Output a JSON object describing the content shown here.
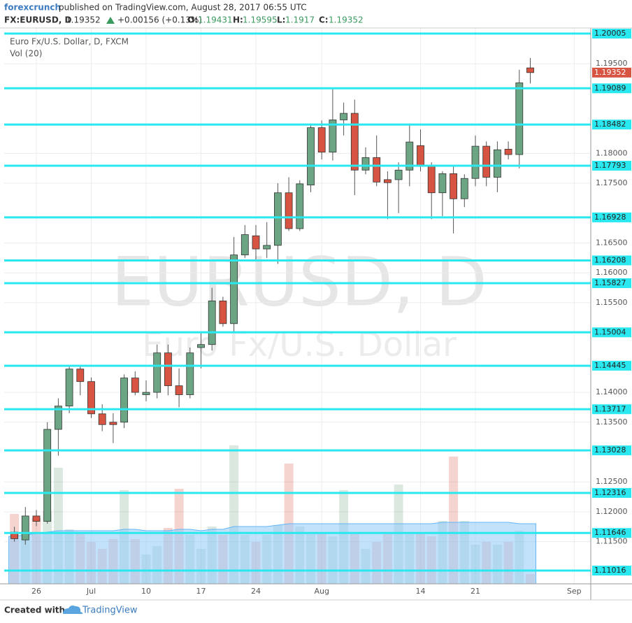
{
  "header": {
    "brand": "forexcrunch",
    "published": "published on TradingView.com, August 28, 2017 06:55 UTC",
    "symbol": "FX:EURUSD, D",
    "change": "+0.00156 (+0.13%)",
    "o_label": "O:",
    "h_label": "H:",
    "l_label": "L:",
    "c_label": "C:"
  },
  "watermark": {
    "symbol": "EURUSD, D",
    "name": "Euro Fx/U.S. Dollar"
  },
  "footer": {
    "created": "Created with",
    "brand": "TradingView"
  },
  "chart_data": {
    "type": "candlestick",
    "title": "Euro Fx/U.S. Dollar, D, FXCM",
    "volume_title": "Vol (20)",
    "categories": [
      null,
      null,
      "26",
      null,
      null,
      null,
      null,
      "Jul",
      null,
      null,
      null,
      null,
      "10",
      null,
      null,
      null,
      null,
      "17",
      null,
      null,
      null,
      null,
      "24",
      null,
      null,
      null,
      null,
      null,
      "Aug",
      null,
      null,
      null,
      null,
      null,
      null,
      null,
      null,
      "14",
      null,
      null,
      null,
      null,
      "21",
      null,
      null,
      null,
      null,
      null,
      null,
      null,
      null,
      "Sep"
    ],
    "open": [
      1.1166,
      1.1153,
      1.1193,
      1.1184,
      1.1338,
      1.1377,
      1.1439,
      1.1418,
      1.1364,
      1.135,
      1.135,
      1.1424,
      1.1396,
      1.14,
      1.1466,
      1.1411,
      1.1396,
      1.1475,
      1.148,
      1.1553,
      1.1515,
      1.163,
      1.1662,
      1.164,
      1.1646,
      1.1734,
      1.1674,
      1.1747,
      1.1843,
      1.1802,
      1.1856,
      1.1867,
      1.1772,
      1.1793,
      1.1756,
      1.1756,
      1.1772,
      1.1813,
      1.1778,
      1.1734,
      1.1766,
      1.1724,
      1.1758,
      1.1812,
      1.176,
      1.1807,
      1.1798,
      1.19431,
      null,
      null,
      null,
      null
    ],
    "high": [
      1.1175,
      1.1208,
      1.1203,
      1.135,
      1.139,
      1.1445,
      1.1445,
      1.1425,
      1.138,
      1.1365,
      1.143,
      1.1435,
      1.142,
      1.148,
      1.148,
      1.144,
      1.1475,
      1.15,
      1.1575,
      1.156,
      1.166,
      1.168,
      1.168,
      1.1685,
      1.175,
      1.176,
      1.1755,
      1.185,
      1.1855,
      1.191,
      1.1885,
      1.189,
      1.181,
      1.183,
      1.177,
      1.1785,
      1.185,
      1.184,
      1.1785,
      1.177,
      1.178,
      1.1765,
      1.183,
      1.182,
      1.182,
      1.182,
      1.194,
      1.19595,
      null,
      null,
      null,
      null
    ],
    "low": [
      1.115,
      1.1145,
      1.1176,
      1.118,
      1.1294,
      1.1365,
      1.1395,
      1.1357,
      1.1335,
      1.1315,
      1.134,
      1.1395,
      1.1385,
      1.139,
      1.1395,
      1.1375,
      1.139,
      1.144,
      1.147,
      1.151,
      1.15,
      1.1625,
      1.162,
      1.1625,
      1.1615,
      1.167,
      1.167,
      1.1735,
      1.179,
      1.1788,
      1.183,
      1.173,
      1.1765,
      1.1745,
      1.169,
      1.17,
      1.1745,
      1.177,
      1.169,
      1.1695,
      1.1666,
      1.171,
      1.1745,
      1.1745,
      1.1735,
      1.179,
      1.1775,
      1.1917,
      null,
      null,
      null,
      null
    ],
    "close": [
      1.1155,
      1.1193,
      1.1184,
      1.1338,
      1.1377,
      1.1439,
      1.1418,
      1.1364,
      1.1346,
      1.1346,
      1.1424,
      1.14,
      1.14,
      1.1466,
      1.1411,
      1.1396,
      1.1466,
      1.148,
      1.1553,
      1.1515,
      1.163,
      1.1664,
      1.164,
      1.1646,
      1.1734,
      1.1674,
      1.1749,
      1.1843,
      1.1802,
      1.1856,
      1.1867,
      1.1772,
      1.1793,
      1.1752,
      1.1751,
      1.1772,
      1.1819,
      1.1778,
      1.1734,
      1.1766,
      1.1724,
      1.1758,
      1.1812,
      1.176,
      1.1806,
      1.1798,
      1.1918,
      1.19352,
      null,
      null,
      null,
      null
    ],
    "volume": [
      50,
      37,
      47,
      52,
      83,
      39,
      37,
      30,
      25,
      32,
      67,
      32,
      21,
      27,
      40,
      68,
      35,
      25,
      41,
      35,
      99,
      35,
      30,
      35,
      42,
      86,
      41,
      37,
      37,
      34,
      67,
      36,
      25,
      30,
      37,
      71,
      37,
      37,
      34,
      45,
      91,
      45,
      28,
      30,
      28,
      30,
      38,
      7,
      null,
      null,
      null,
      null
    ],
    "volume_ma": [
      34,
      35,
      36,
      37,
      38,
      38,
      38,
      38,
      38,
      38,
      39,
      39,
      38,
      38,
      38,
      39,
      39,
      38,
      39,
      39,
      41,
      41,
      41,
      41,
      42,
      43,
      43,
      43,
      43,
      43,
      43,
      43,
      43,
      43,
      43,
      43,
      43,
      43,
      43,
      44,
      44,
      44,
      44,
      44,
      44,
      44,
      43,
      43,
      null,
      null,
      null,
      null
    ],
    "volume_lim": [
      0,
      100
    ],
    "up_color": "#6ba583",
    "down_color": "#d75442",
    "level_color": "#2ae8f0",
    "volume_ma_color": "#90caf9",
    "ylim": [
      1.10794,
      1.20099
    ],
    "yticks": [
      {
        "value": 1.195,
        "label": "1.19500"
      },
      {
        "value": 1.18,
        "label": "1.18000"
      },
      {
        "value": 1.175,
        "label": "1.17500"
      },
      {
        "value": 1.165,
        "label": "1.16500"
      },
      {
        "value": 1.16,
        "label": "1.16000"
      },
      {
        "value": 1.155,
        "label": "1.15500"
      },
      {
        "value": 1.14,
        "label": "1.14000"
      },
      {
        "value": 1.135,
        "label": "1.13500"
      },
      {
        "value": 1.125,
        "label": "1.12500"
      },
      {
        "value": 1.12,
        "label": "1.12000"
      },
      {
        "value": 1.115,
        "label": "1.11500"
      }
    ],
    "levels": [
      1.20005,
      1.19089,
      1.18482,
      1.17793,
      1.16928,
      1.16208,
      1.15827,
      1.15004,
      1.14445,
      1.13717,
      1.13028,
      1.12316,
      1.11646,
      1.11016
    ],
    "grid": true
  }
}
